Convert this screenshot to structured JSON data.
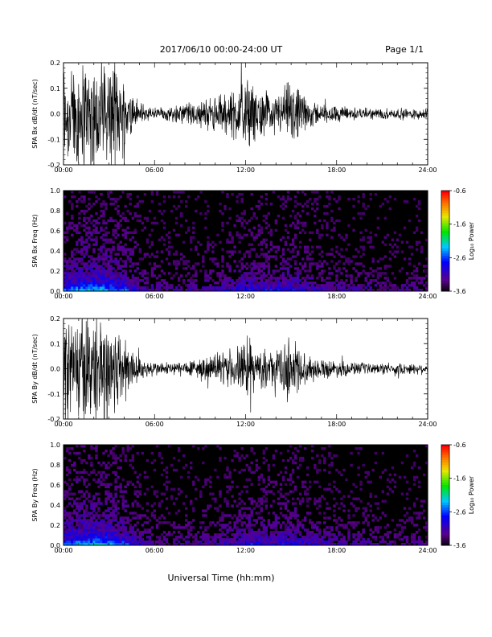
{
  "header": {
    "title": "2017/06/10  00:00-24:00 UT",
    "page_label": "Page 1/1"
  },
  "xlabel": "Universal Time (hh:mm)",
  "x_ticks": [
    "00:00",
    "06:00",
    "12:00",
    "18:00",
    "24:00"
  ],
  "colors": {
    "trace": "#000000",
    "background": "#ffffff",
    "spectrogram_background": "#000000"
  },
  "chart_data": [
    {
      "type": "line",
      "name": "bx-dbdt",
      "ylabel": "SPA Bx dB/dt (nT/sec)",
      "xlim": [
        0,
        24
      ],
      "ylim": [
        -0.2,
        0.2
      ],
      "y_ticks": [
        "-0.2",
        "-0.1",
        "0.0",
        "0.1",
        "0.2"
      ],
      "activity_hours": [
        0,
        1,
        2,
        3,
        4,
        5,
        6,
        7,
        8,
        9,
        10,
        11,
        12,
        13,
        14,
        15,
        16,
        17,
        18,
        19,
        20,
        21,
        22,
        23,
        24
      ],
      "activity_amplitude": [
        0.2,
        0.2,
        0.2,
        0.2,
        0.14,
        0.04,
        0.025,
        0.025,
        0.04,
        0.05,
        0.06,
        0.09,
        0.13,
        0.08,
        0.07,
        0.12,
        0.06,
        0.035,
        0.03,
        0.025,
        0.02,
        0.02,
        0.02,
        0.02,
        0.02
      ]
    },
    {
      "type": "heatmap",
      "name": "bx-freq",
      "ylabel": "SPA Bx Freq (Hz)",
      "xlim": [
        0,
        24
      ],
      "ylim": [
        0,
        1.0
      ],
      "y_ticks": [
        "0.0",
        "0.2",
        "0.4",
        "0.6",
        "0.8",
        "1.0"
      ],
      "colorbar": {
        "label": "Log₁₀ Power",
        "range": [
          -3.6,
          -0.6
        ],
        "ticks": [
          "-0.6",
          "-1.6",
          "-2.6",
          "-3.6"
        ]
      },
      "power_hours": [
        0,
        1,
        2,
        3,
        4,
        5,
        6,
        7,
        8,
        9,
        10,
        11,
        12,
        13,
        14,
        15,
        16,
        17,
        18,
        19,
        20,
        21,
        22,
        23,
        24
      ],
      "power_low_freq": [
        -2.3,
        -2.0,
        -1.9,
        -2.0,
        -2.3,
        -2.9,
        -3.1,
        -3.2,
        -3.1,
        -3.0,
        -3.0,
        -2.8,
        -2.6,
        -2.7,
        -2.7,
        -2.6,
        -2.8,
        -2.9,
        -3.0,
        -3.1,
        -3.1,
        -3.2,
        -3.2,
        -3.2,
        -3.2
      ]
    },
    {
      "type": "line",
      "name": "by-dbdt",
      "ylabel": "SPA By dB/dt (nT/sec)",
      "xlim": [
        0,
        24
      ],
      "ylim": [
        -0.2,
        0.2
      ],
      "y_ticks": [
        "-0.2",
        "-0.1",
        "0.0",
        "0.1",
        "0.2"
      ],
      "activity_hours": [
        0,
        1,
        2,
        3,
        4,
        5,
        6,
        7,
        8,
        9,
        10,
        11,
        12,
        13,
        14,
        15,
        16,
        17,
        18,
        19,
        20,
        21,
        22,
        23,
        24
      ],
      "activity_amplitude": [
        0.2,
        0.2,
        0.2,
        0.2,
        0.13,
        0.04,
        0.025,
        0.025,
        0.03,
        0.04,
        0.05,
        0.07,
        0.1,
        0.07,
        0.06,
        0.13,
        0.05,
        0.035,
        0.03,
        0.025,
        0.02,
        0.02,
        0.02,
        0.02,
        0.02
      ]
    },
    {
      "type": "heatmap",
      "name": "by-freq",
      "ylabel": "SPA By Freq (Hz)",
      "xlim": [
        0,
        24
      ],
      "ylim": [
        0,
        1.0
      ],
      "y_ticks": [
        "0.0",
        "0.2",
        "0.4",
        "0.6",
        "0.8",
        "1.0"
      ],
      "colorbar": {
        "label": "Log₁₀ Power",
        "range": [
          -3.6,
          -0.6
        ],
        "ticks": [
          "-0.6",
          "-1.6",
          "-2.6",
          "-3.6"
        ]
      },
      "power_hours": [
        0,
        1,
        2,
        3,
        4,
        5,
        6,
        7,
        8,
        9,
        10,
        11,
        12,
        13,
        14,
        15,
        16,
        17,
        18,
        19,
        20,
        21,
        22,
        23,
        24
      ],
      "power_low_freq": [
        -2.3,
        -2.0,
        -1.9,
        -2.0,
        -2.3,
        -2.9,
        -3.1,
        -3.2,
        -3.1,
        -3.0,
        -3.0,
        -2.8,
        -2.6,
        -2.7,
        -2.7,
        -2.6,
        -2.8,
        -2.9,
        -3.0,
        -3.1,
        -3.1,
        -3.2,
        -3.2,
        -3.2,
        -3.2
      ]
    }
  ]
}
